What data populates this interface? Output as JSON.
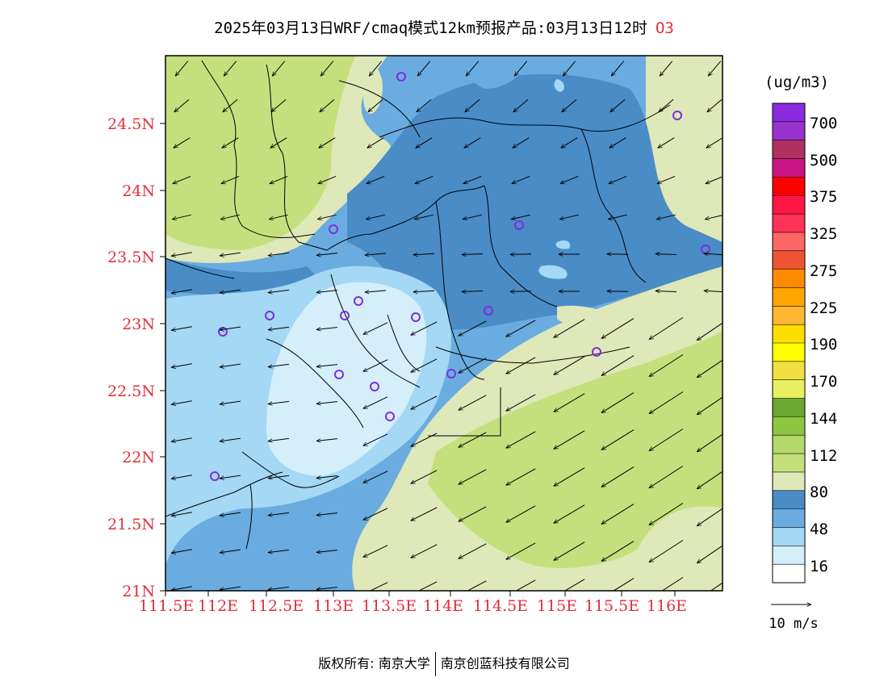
{
  "title": {
    "text": "2025年03月13日WRF/cmaq模式12km预报产品:03月13日12时",
    "pollutant": "O3"
  },
  "axes": {
    "lat_ticks": [
      "24.5N",
      "24N",
      "23.5N",
      "23N",
      "22.5N",
      "22N",
      "21.5N",
      "21N"
    ],
    "lon_ticks": [
      "111.5E",
      "112E",
      "112.5E",
      "113E",
      "113.5E",
      "114E",
      "114.5E",
      "115E",
      "115.5E",
      "116E"
    ]
  },
  "legend": {
    "unit": "(ug/m3)",
    "labels": [
      "700",
      "500",
      "375",
      "325",
      "275",
      "225",
      "190",
      "170",
      "144",
      "112",
      "80",
      "48",
      "16"
    ],
    "colors_top_to_bottom": [
      "#8a2be2",
      "#9932cc",
      "#b03060",
      "#c71585",
      "#ff0000",
      "#ff1744",
      "#ff3355",
      "#ff6666",
      "#ee5533",
      "#ff8c00",
      "#ffa500",
      "#ffb830",
      "#ffdd00",
      "#ffff00",
      "#f0e040",
      "#e8f060",
      "#6aa832",
      "#8dc63f",
      "#b5d86a",
      "#c5df7c",
      "#dfe8b8",
      "#4a8cc6",
      "#6aace0",
      "#a4d8f4",
      "#d4eefa",
      "#ffffff"
    ]
  },
  "wind_scale": {
    "label": "10 m/s"
  },
  "footer": {
    "left": "版权所有: 南京大学",
    "right": "南京创蓝科技有限公司"
  }
}
